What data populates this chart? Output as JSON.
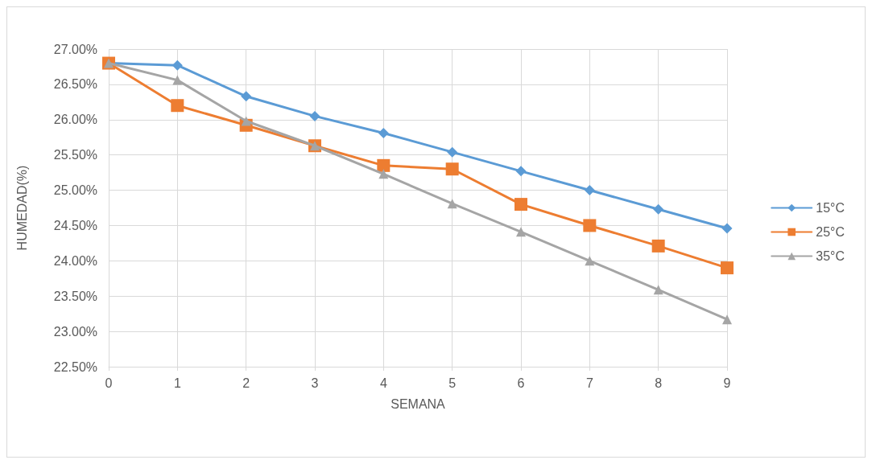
{
  "chart_data": {
    "type": "line",
    "xlabel": "SEMANA",
    "ylabel": "HUMEDAD(%)",
    "x": [
      0,
      1,
      2,
      3,
      4,
      5,
      6,
      7,
      8,
      9
    ],
    "series": [
      {
        "name": "15°C",
        "color": "#5b9bd5",
        "marker": "diamond",
        "values": [
          26.8,
          26.77,
          26.33,
          26.05,
          25.81,
          25.54,
          25.27,
          25.0,
          24.73,
          24.46
        ]
      },
      {
        "name": "25°C",
        "color": "#ed7d31",
        "marker": "square",
        "values": [
          26.8,
          26.2,
          25.92,
          25.63,
          25.35,
          25.3,
          24.8,
          24.5,
          24.21,
          23.9
        ]
      },
      {
        "name": "35°C",
        "color": "#a5a5a5",
        "marker": "triangle",
        "values": [
          26.8,
          26.56,
          25.98,
          25.63,
          25.23,
          24.81,
          24.41,
          24.0,
          23.59,
          23.17
        ]
      }
    ],
    "xlim": [
      0,
      9
    ],
    "xticks": [
      0,
      1,
      2,
      3,
      4,
      5,
      6,
      7,
      8,
      9
    ],
    "ylim": [
      22.5,
      27
    ],
    "yticks": [
      {
        "value": 22.5,
        "label": "22.50%"
      },
      {
        "value": 23,
        "label": "23.00%"
      },
      {
        "value": 23.5,
        "label": "23.50%"
      },
      {
        "value": 24,
        "label": "24.00%"
      },
      {
        "value": 24.5,
        "label": "24.50%"
      },
      {
        "value": 25,
        "label": "25.00%"
      },
      {
        "value": 25.5,
        "label": "25.50%"
      },
      {
        "value": 26,
        "label": "26.00%"
      },
      {
        "value": 26.5,
        "label": "26.50%"
      },
      {
        "value": 27,
        "label": "27.00%"
      }
    ],
    "grid": true,
    "legend": "right",
    "line_style": "solid"
  }
}
